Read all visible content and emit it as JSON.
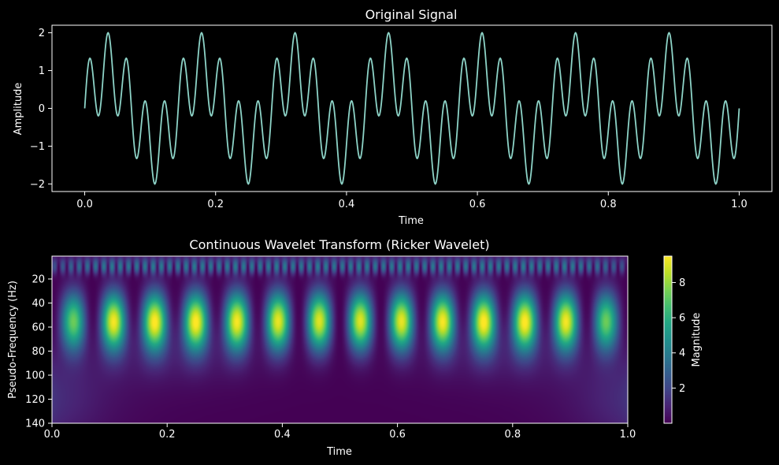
{
  "chart_data": [
    {
      "type": "line",
      "title": "Original Signal",
      "xlabel": "Time",
      "ylabel": "Amplitude",
      "xlim": [
        -0.05,
        1.05
      ],
      "ylim": [
        -2.2,
        2.2
      ],
      "xticks": [
        0.0,
        0.2,
        0.4,
        0.6,
        0.8,
        1.0
      ],
      "xtick_labels": [
        "0.0",
        "0.2",
        "0.4",
        "0.6",
        "0.8",
        "1.0"
      ],
      "yticks": [
        2,
        1,
        0,
        -1,
        -2
      ],
      "ytick_labels": [
        "2",
        "1",
        "0",
        "−1",
        "−2"
      ],
      "x_range": [
        0,
        1
      ],
      "signal": {
        "components": [
          {
            "amplitude": 1,
            "frequency_hz": 7
          },
          {
            "amplitude": 1,
            "frequency_hz": 35
          }
        ]
      },
      "line_color": "#8dd3c7"
    },
    {
      "type": "heatmap",
      "title": "Continuous Wavelet Transform (Ricker Wavelet)",
      "xlabel": "Time",
      "ylabel": "Pseudo-Frequency (Hz)",
      "xlim": [
        0.0,
        1.0
      ],
      "ylim": [
        140,
        1
      ],
      "xticks": [
        0.0,
        0.2,
        0.4,
        0.6,
        0.8,
        1.0
      ],
      "xtick_labels": [
        "0.0",
        "0.2",
        "0.4",
        "0.6",
        "0.8",
        "1.0"
      ],
      "yticks": [
        20,
        40,
        60,
        80,
        100,
        120,
        140
      ],
      "ytick_labels": [
        "20",
        "40",
        "60",
        "80",
        "100",
        "120",
        "140"
      ],
      "colormap": "viridis",
      "colorbar": {
        "label": "Magnitude",
        "range": [
          0,
          9.5
        ],
        "ticks": [
          2,
          4,
          6,
          8
        ],
        "tick_labels": [
          "2",
          "4",
          "6",
          "8"
        ]
      },
      "peak_centers_time": [
        0.107,
        0.179,
        0.25,
        0.321,
        0.393,
        0.464,
        0.536,
        0.607,
        0.679,
        0.75,
        0.821,
        0.893
      ],
      "peak_frequency": 55,
      "peak_magnitude": 9.5
    }
  ],
  "colors": {
    "background": "#000000",
    "foreground": "#ffffff",
    "line": "#8dd3c7"
  }
}
